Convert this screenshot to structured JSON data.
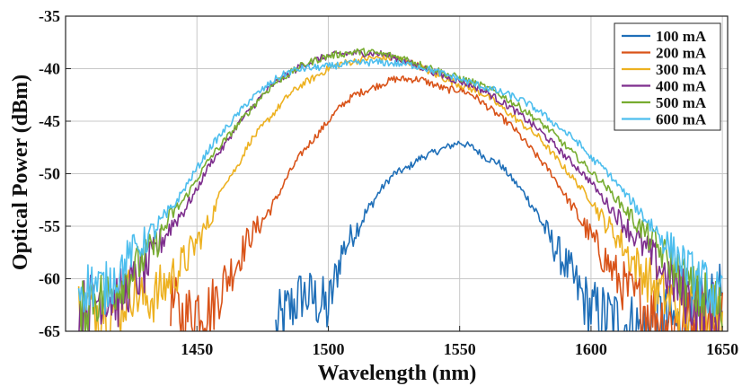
{
  "chart_data": {
    "type": "line",
    "title": "",
    "xlabel": "Wavelength (nm)",
    "ylabel": "Optical Power (dBm)",
    "xlim": [
      1400,
      1652
    ],
    "ylim": [
      -65,
      -35
    ],
    "xticks": [
      1450,
      1500,
      1550,
      1600,
      1650
    ],
    "yticks": [
      -35,
      -40,
      -45,
      -50,
      -55,
      -60,
      -65
    ],
    "grid": true,
    "legend_position": "top-right",
    "series": [
      {
        "name": "100 mA",
        "color": "#1f6fb8",
        "x": [
          1480,
          1485,
          1490,
          1495,
          1500,
          1505,
          1510,
          1515,
          1520,
          1525,
          1530,
          1535,
          1540,
          1545,
          1550,
          1555,
          1560,
          1565,
          1570,
          1575,
          1580,
          1585,
          1590,
          1595,
          1600,
          1605,
          1610,
          1615,
          1620,
          1625,
          1630,
          1635,
          1640,
          1645,
          1650
        ],
        "y": [
          -65,
          -63,
          -61.5,
          -62,
          -63,
          -57.5,
          -55.5,
          -53.5,
          -51.5,
          -50,
          -49.5,
          -48.5,
          -48,
          -47.5,
          -47,
          -47.5,
          -48.5,
          -49,
          -50.5,
          -52,
          -54,
          -56.5,
          -58.5,
          -61,
          -63,
          -63.5,
          -64,
          -64.5,
          -65,
          -63.5,
          -64,
          -65,
          -63,
          -62,
          -61
        ]
      },
      {
        "name": "200 mA",
        "color": "#d95319",
        "x": [
          1440,
          1445,
          1450,
          1455,
          1460,
          1465,
          1470,
          1475,
          1480,
          1485,
          1490,
          1495,
          1500,
          1505,
          1510,
          1515,
          1520,
          1525,
          1530,
          1535,
          1540,
          1545,
          1550,
          1555,
          1560,
          1565,
          1570,
          1575,
          1580,
          1585,
          1590,
          1595,
          1600,
          1605,
          1610,
          1615,
          1620,
          1625,
          1630,
          1635,
          1640,
          1645,
          1650
        ],
        "y": [
          -62,
          -64,
          -62.5,
          -63,
          -60.5,
          -58.5,
          -56,
          -54.5,
          -52.5,
          -50,
          -48,
          -46.5,
          -45,
          -43.5,
          -42.5,
          -42,
          -41.5,
          -41,
          -41,
          -41,
          -41.5,
          -42,
          -42,
          -42.5,
          -43.5,
          -44.5,
          -45.5,
          -47,
          -48.5,
          -50,
          -52,
          -54,
          -56,
          -58,
          -60,
          -61.5,
          -62.5,
          -63.5,
          -64,
          -64.5,
          -64,
          -64.5,
          -63.5
        ]
      },
      {
        "name": "300 mA",
        "color": "#edb120",
        "x": [
          1405,
          1410,
          1415,
          1420,
          1425,
          1430,
          1435,
          1440,
          1445,
          1450,
          1455,
          1460,
          1465,
          1470,
          1475,
          1480,
          1485,
          1490,
          1495,
          1500,
          1505,
          1510,
          1515,
          1520,
          1525,
          1530,
          1535,
          1540,
          1545,
          1550,
          1555,
          1560,
          1565,
          1570,
          1575,
          1580,
          1585,
          1590,
          1595,
          1600,
          1605,
          1610,
          1615,
          1620,
          1625,
          1630,
          1635,
          1640,
          1645,
          1650
        ],
        "y": [
          -62,
          -63,
          -62.5,
          -63,
          -61,
          -62,
          -61.5,
          -60,
          -58.5,
          -56.5,
          -54.5,
          -51,
          -49.5,
          -47,
          -45.5,
          -44,
          -42.5,
          -41.5,
          -40.8,
          -40,
          -39.5,
          -39.3,
          -39,
          -39,
          -39,
          -39.3,
          -39.8,
          -40.5,
          -41,
          -41.5,
          -42,
          -42.5,
          -43.5,
          -44.5,
          -45.5,
          -46.5,
          -48,
          -49.5,
          -51,
          -52.5,
          -54.5,
          -56,
          -58,
          -59.5,
          -61,
          -62,
          -63,
          -63.5,
          -62.5,
          -64
        ]
      },
      {
        "name": "400 mA",
        "color": "#7e2f8e",
        "x": [
          1405,
          1410,
          1415,
          1420,
          1425,
          1430,
          1435,
          1440,
          1445,
          1450,
          1455,
          1460,
          1465,
          1470,
          1475,
          1480,
          1485,
          1490,
          1495,
          1500,
          1505,
          1510,
          1515,
          1520,
          1525,
          1530,
          1535,
          1540,
          1545,
          1550,
          1555,
          1560,
          1565,
          1570,
          1575,
          1580,
          1585,
          1590,
          1595,
          1600,
          1605,
          1610,
          1615,
          1620,
          1625,
          1630,
          1635,
          1640,
          1645,
          1650
        ],
        "y": [
          -63.5,
          -62,
          -61.5,
          -62,
          -60.5,
          -59.5,
          -57,
          -55,
          -53.5,
          -51.5,
          -49,
          -47.5,
          -45.5,
          -44,
          -42.5,
          -41.3,
          -40.5,
          -39.7,
          -39.2,
          -38.8,
          -38.6,
          -38.5,
          -38.5,
          -38.6,
          -38.9,
          -39.4,
          -39.8,
          -40.3,
          -40.8,
          -41.2,
          -41.6,
          -42.2,
          -43,
          -43.8,
          -44.8,
          -45.8,
          -47,
          -48.3,
          -49.5,
          -50.8,
          -52.5,
          -54,
          -55.5,
          -57,
          -58.5,
          -60,
          -61.5,
          -62.5,
          -63,
          -63.5
        ]
      },
      {
        "name": "500 mA",
        "color": "#77ac30",
        "x": [
          1405,
          1410,
          1415,
          1420,
          1425,
          1430,
          1435,
          1440,
          1445,
          1450,
          1455,
          1460,
          1465,
          1470,
          1475,
          1480,
          1485,
          1490,
          1495,
          1500,
          1505,
          1510,
          1515,
          1520,
          1525,
          1530,
          1535,
          1540,
          1545,
          1550,
          1555,
          1560,
          1565,
          1570,
          1575,
          1580,
          1585,
          1590,
          1595,
          1600,
          1605,
          1610,
          1615,
          1620,
          1625,
          1630,
          1635,
          1640,
          1645,
          1650
        ],
        "y": [
          -64,
          -61.5,
          -62,
          -60.5,
          -59.5,
          -58,
          -56.5,
          -54,
          -52.5,
          -50.5,
          -48.5,
          -47,
          -45.5,
          -44,
          -42.5,
          -41.3,
          -40.5,
          -39.7,
          -39.2,
          -38.8,
          -38.6,
          -38.4,
          -38.4,
          -38.6,
          -38.8,
          -39.1,
          -39.6,
          -40,
          -40.5,
          -40.9,
          -41.3,
          -41.8,
          -42.4,
          -43.2,
          -44,
          -45,
          -46,
          -47.3,
          -48.5,
          -49.8,
          -51,
          -52.5,
          -54,
          -55.5,
          -57,
          -58.5,
          -60,
          -61.5,
          -62,
          -63
        ]
      },
      {
        "name": "600 mA",
        "color": "#4dbeee",
        "x": [
          1405,
          1410,
          1415,
          1420,
          1425,
          1430,
          1435,
          1440,
          1445,
          1450,
          1455,
          1460,
          1465,
          1470,
          1475,
          1480,
          1485,
          1490,
          1495,
          1500,
          1505,
          1510,
          1515,
          1520,
          1525,
          1530,
          1535,
          1540,
          1545,
          1550,
          1555,
          1560,
          1565,
          1570,
          1575,
          1580,
          1585,
          1590,
          1595,
          1600,
          1605,
          1610,
          1615,
          1620,
          1625,
          1630,
          1635,
          1640,
          1645,
          1650
        ],
        "y": [
          -61,
          -60.5,
          -61,
          -59.5,
          -57.5,
          -56.5,
          -55,
          -53.5,
          -51.5,
          -49.5,
          -47.5,
          -46,
          -44.5,
          -43,
          -42,
          -41,
          -40.3,
          -40,
          -39.9,
          -39.8,
          -39.6,
          -39.5,
          -39.4,
          -39.4,
          -39.5,
          -39.6,
          -39.8,
          -40.2,
          -40.6,
          -41,
          -41.4,
          -41.8,
          -42.2,
          -42.6,
          -43.2,
          -44,
          -45,
          -46,
          -47,
          -48.5,
          -49.5,
          -51,
          -52.5,
          -54,
          -55.5,
          -57,
          -58.5,
          -60,
          -61,
          -62.5
        ]
      }
    ]
  }
}
